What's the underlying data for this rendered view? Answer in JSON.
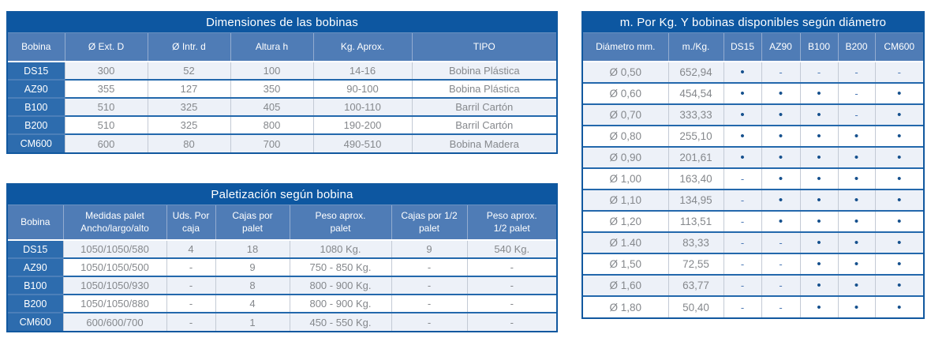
{
  "colors": {
    "title_bar": "#0d57a1",
    "header_row": "#4f7cb6",
    "label_column": "#2d6cae",
    "row_alt_light": "#edf1f8",
    "row_white": "#ffffff",
    "row_divider_blue": "#2368ac",
    "grid_gray": "#c3cad5",
    "data_text_gray": "#85888c",
    "dot_navy": "#15508d",
    "dash_blue": "#4d79b5"
  },
  "tables": {
    "dim": {
      "title": "Dimensiones de las bobinas",
      "columns": [
        "Bobina",
        "Ø  Ext. D",
        "Ø Intr. d",
        "Altura h",
        "Kg. Aprox.",
        "TIPO"
      ],
      "fields": [
        "bobina",
        "ext",
        "intr",
        "altura",
        "kg",
        "tipo"
      ],
      "rows": [
        {
          "bobina": "DS15",
          "ext": "300",
          "intr": "52",
          "altura": "100",
          "kg": "14-16",
          "tipo": "Bobina Plástica"
        },
        {
          "bobina": "AZ90",
          "ext": "355",
          "intr": "127",
          "altura": "350",
          "kg": "90-100",
          "tipo": "Bobina Plástica"
        },
        {
          "bobina": "B100",
          "ext": "510",
          "intr": "325",
          "altura": "405",
          "kg": "100-110",
          "tipo": "Barril Cartón"
        },
        {
          "bobina": "B200",
          "ext": "510",
          "intr": "325",
          "altura": "800",
          "kg": "190-200",
          "tipo": "Barril Cartón"
        },
        {
          "bobina": "CM600",
          "ext": "600",
          "intr": "80",
          "altura": "700",
          "kg": "490-510",
          "tipo": "Bobina Madera"
        }
      ]
    },
    "pal": {
      "title": "Paletización según bobina",
      "columns": [
        "Bobina",
        "Medidas palet\nAncho/largo/alto",
        "Uds. Por\ncaja",
        "Cajas por\npalet",
        "Peso aprox.\npalet",
        "Cajas por 1/2\npalet",
        "Peso aprox.\n1/2 palet"
      ],
      "fields": [
        "bobina",
        "medidas",
        "uds",
        "cajas",
        "peso",
        "cajas_half",
        "peso_half"
      ],
      "rows": [
        {
          "bobina": "DS15",
          "medidas": "1050/1050/580",
          "uds": "4",
          "cajas": "18",
          "peso": "1080 Kg.",
          "cajas_half": "9",
          "peso_half": "540 Kg."
        },
        {
          "bobina": "AZ90",
          "medidas": "1050/1050/500",
          "uds": "-",
          "cajas": "9",
          "peso": "750 - 850 Kg.",
          "cajas_half": "-",
          "peso_half": "-"
        },
        {
          "bobina": "B100",
          "medidas": "1050/1050/930",
          "uds": "-",
          "cajas": "8",
          "peso": "800 - 900 Kg.",
          "cajas_half": "-",
          "peso_half": "-"
        },
        {
          "bobina": "B200",
          "medidas": "1050/1050/880",
          "uds": "-",
          "cajas": "4",
          "peso": "800 - 900 Kg.",
          "cajas_half": "-",
          "peso_half": "-"
        },
        {
          "bobina": "CM600",
          "medidas": "600/600/700",
          "uds": "-",
          "cajas": "1",
          "peso": "450 - 550 Kg.",
          "cajas_half": "-",
          "peso_half": "-"
        }
      ]
    },
    "met": {
      "title": "m. Por Kg. Y bobinas disponibles según diámetro",
      "columns": [
        "Diámetro mm.",
        "m./Kg.",
        "DS15",
        "AZ90",
        "B100",
        "B200",
        "CM600"
      ],
      "fields": [
        "diametro",
        "mkg",
        "ds15",
        "az90",
        "b100",
        "b200",
        "cm600"
      ],
      "rows": [
        {
          "diametro": "Ø 0,50",
          "mkg": "652,94",
          "ds15": "•",
          "az90": "-",
          "b100": "-",
          "b200": "-",
          "cm600": "-"
        },
        {
          "diametro": "Ø 0,60",
          "mkg": "454,54",
          "ds15": "•",
          "az90": "•",
          "b100": "•",
          "b200": "-",
          "cm600": "•"
        },
        {
          "diametro": "Ø 0,70",
          "mkg": "333,33",
          "ds15": "•",
          "az90": "•",
          "b100": "•",
          "b200": "-",
          "cm600": "•"
        },
        {
          "diametro": "Ø 0,80",
          "mkg": "255,10",
          "ds15": "•",
          "az90": "•",
          "b100": "•",
          "b200": "•",
          "cm600": "•"
        },
        {
          "diametro": "Ø 0,90",
          "mkg": "201,61",
          "ds15": "•",
          "az90": "•",
          "b100": "•",
          "b200": "•",
          "cm600": "•"
        },
        {
          "diametro": "Ø 1,00",
          "mkg": "163,40",
          "ds15": "-",
          "az90": "•",
          "b100": "•",
          "b200": "•",
          "cm600": "•"
        },
        {
          "diametro": "Ø 1,10",
          "mkg": "134,95",
          "ds15": "-",
          "az90": "•",
          "b100": "•",
          "b200": "•",
          "cm600": "•"
        },
        {
          "diametro": "Ø 1,20",
          "mkg": "113,51",
          "ds15": "-",
          "az90": "•",
          "b100": "•",
          "b200": "•",
          "cm600": "•"
        },
        {
          "diametro": "Ø 1.40",
          "mkg": "83,33",
          "ds15": "-",
          "az90": "-",
          "b100": "•",
          "b200": "•",
          "cm600": "•"
        },
        {
          "diametro": "Ø 1,50",
          "mkg": "72,55",
          "ds15": "-",
          "az90": "-",
          "b100": "•",
          "b200": "•",
          "cm600": "•"
        },
        {
          "diametro": "Ø 1,60",
          "mkg": "63,77",
          "ds15": "-",
          "az90": "-",
          "b100": "•",
          "b200": "•",
          "cm600": "•"
        },
        {
          "diametro": "Ø 1,80",
          "mkg": "50,40",
          "ds15": "-",
          "az90": "-",
          "b100": "•",
          "b200": "•",
          "cm600": "•"
        }
      ]
    }
  }
}
